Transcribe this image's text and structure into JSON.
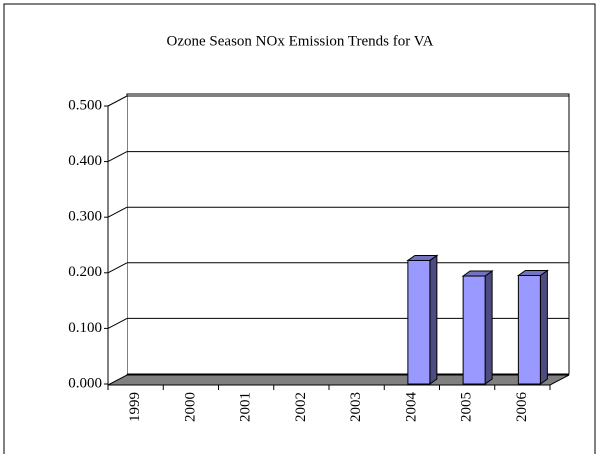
{
  "chart_data": {
    "type": "bar3d",
    "title": "Ozone Season NOx Emission Trends for VA",
    "categories": [
      "1999",
      "2000",
      "2001",
      "2002",
      "2003",
      "2004",
      "2005",
      "2006"
    ],
    "values": [
      null,
      null,
      null,
      null,
      null,
      0.215,
      0.187,
      0.188
    ],
    "color": "#9999ff",
    "ylim": [
      0,
      0.5
    ],
    "yticks": [
      {
        "value": 0,
        "label": "0.000"
      },
      {
        "value": 0.1,
        "label": "0.100"
      },
      {
        "value": 0.2,
        "label": "0.200"
      },
      {
        "value": 0.3,
        "label": "0.300"
      },
      {
        "value": 0.4,
        "label": "0.400"
      },
      {
        "value": 0.5,
        "label": "0.500"
      }
    ],
    "grid": true
  }
}
